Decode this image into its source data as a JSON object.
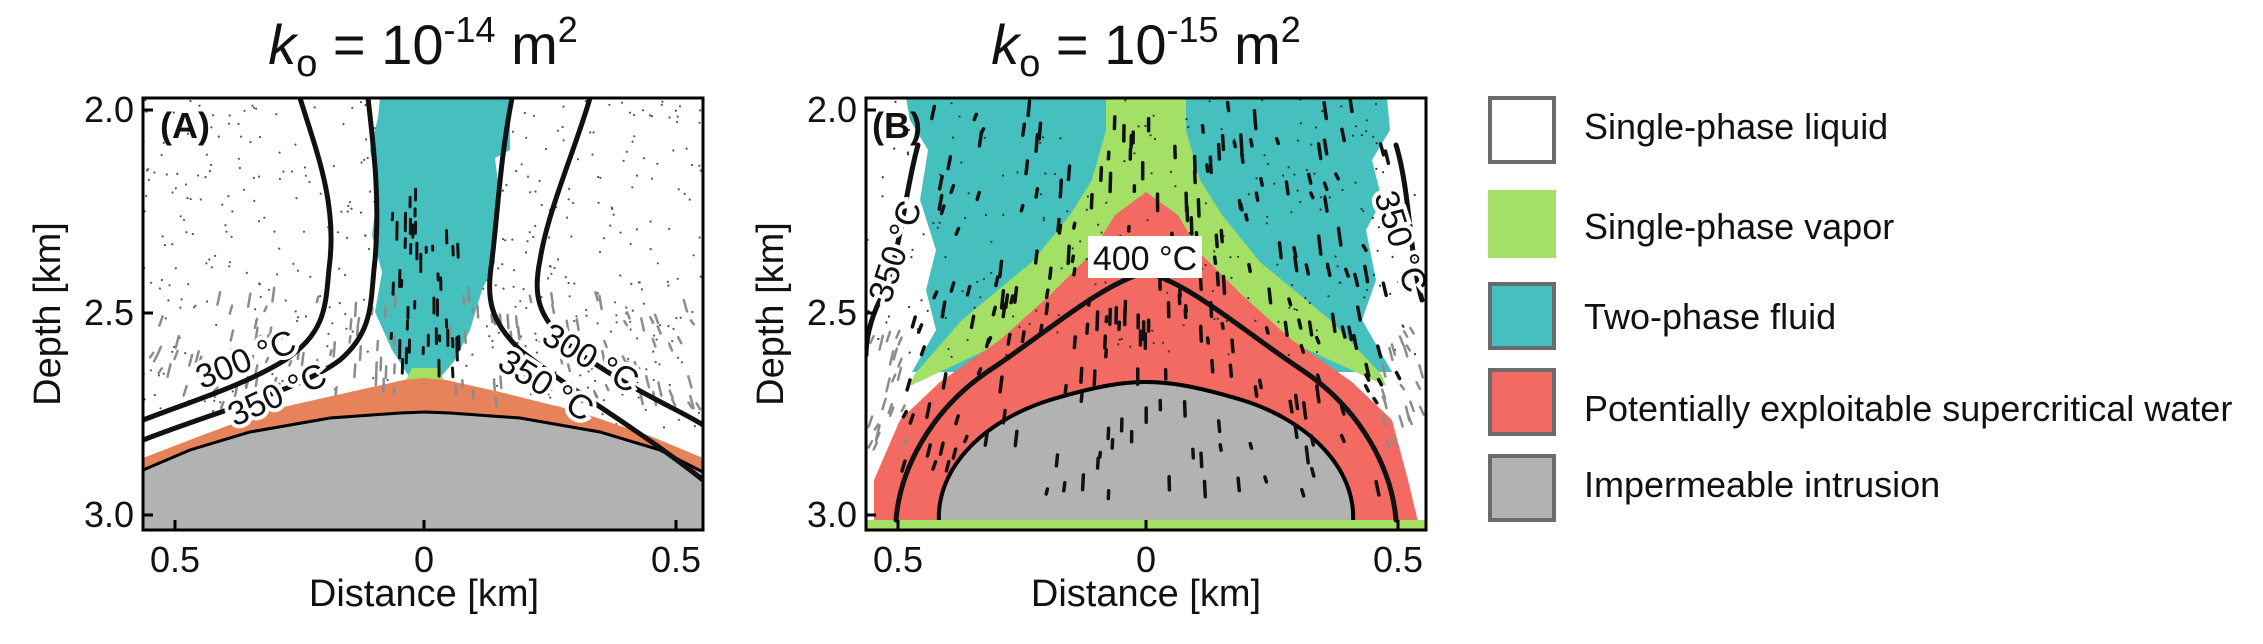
{
  "colors": {
    "liquid": "#ffffff",
    "vapor": "#a4e065",
    "two_phase": "#46bfbf",
    "supercritical_a": "#e6835a",
    "supercritical_b": "#f26a62",
    "intrusion": "#b2b2b2",
    "isotherm": "#111111",
    "arrow_dark": "#111111",
    "arrow_grey": "#8c8c8c"
  },
  "panels": [
    {
      "id": "A",
      "label": "(A)",
      "title_symbol": "k",
      "title_sub": "o",
      "title_eq": " = 10",
      "title_exp": "-14",
      "title_unit": " m",
      "title_unit_exp": "2",
      "ylabel": "Depth [km]",
      "xlabel": "Distance [km]",
      "yticks": [
        "2.0",
        "2.5",
        "3.0"
      ],
      "xticks": [
        "0.5",
        "0",
        "0.5"
      ],
      "isotherm_labels": [
        "300 °C",
        "350 °C",
        "300 °C",
        "350 °C"
      ]
    },
    {
      "id": "B",
      "label": "(B)",
      "title_symbol": "k",
      "title_sub": "o",
      "title_eq": " = 10",
      "title_exp": "-15",
      "title_unit": " m",
      "title_unit_exp": "2",
      "ylabel": "Depth [km]",
      "xlabel": "Distance [km]",
      "yticks": [
        "2.0",
        "2.5",
        "3.0"
      ],
      "xticks": [
        "0.5",
        "0",
        "0.5"
      ],
      "isotherm_labels": [
        "350 °C",
        "350 °C",
        "400 °C"
      ]
    }
  ],
  "legend": [
    {
      "key": "liquid",
      "label": "Single-phase liquid"
    },
    {
      "key": "vapor",
      "label": "Single-phase vapor"
    },
    {
      "key": "two_phase",
      "label": "Two-phase fluid"
    },
    {
      "key": "supercritical",
      "label": "Potentially exploitable supercritical water"
    },
    {
      "key": "intrusion",
      "label": "Impermeable intrusion"
    }
  ]
}
